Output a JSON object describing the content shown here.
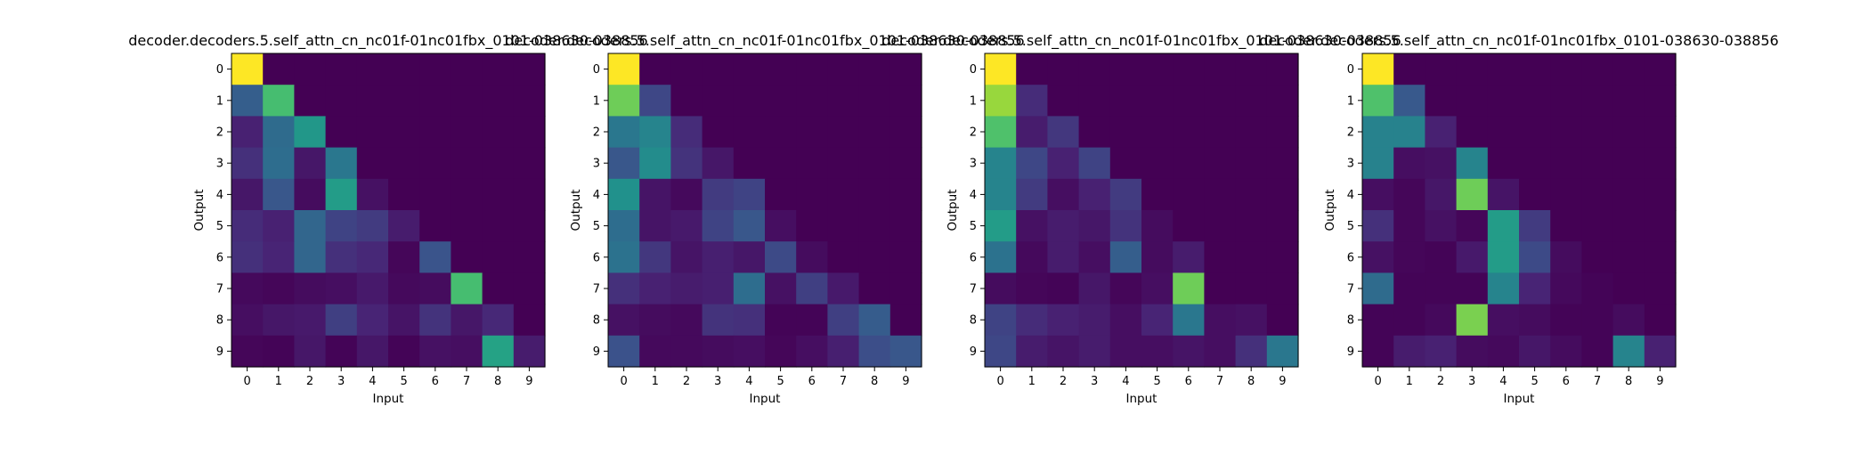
{
  "chart_data": [
    {
      "type": "heatmap",
      "title": "decoder.decoders.5.self_attn_cn_nc01f-01nc01fbx_0101-038630-038856",
      "xlabel": "Input",
      "ylabel": "Output",
      "x_ticks": [
        "0",
        "1",
        "2",
        "3",
        "4",
        "5",
        "6",
        "7",
        "8",
        "9"
      ],
      "y_ticks": [
        "0",
        "1",
        "2",
        "3",
        "4",
        "5",
        "6",
        "7",
        "8",
        "9"
      ],
      "colormap": "viridis",
      "vmin": 0,
      "vmax": 1,
      "values": [
        [
          1.0,
          0,
          0,
          0,
          0,
          0,
          0,
          0,
          0,
          0
        ],
        [
          0.3,
          0.7,
          0,
          0,
          0,
          0,
          0,
          0,
          0,
          0
        ],
        [
          0.12,
          0.35,
          0.53,
          0,
          0,
          0,
          0,
          0,
          0,
          0
        ],
        [
          0.16,
          0.36,
          0.08,
          0.4,
          0,
          0,
          0,
          0,
          0,
          0
        ],
        [
          0.08,
          0.27,
          0.04,
          0.55,
          0.06,
          0,
          0,
          0,
          0,
          0
        ],
        [
          0.15,
          0.12,
          0.33,
          0.21,
          0.19,
          0.1,
          0,
          0,
          0,
          0
        ],
        [
          0.16,
          0.13,
          0.33,
          0.16,
          0.14,
          0.02,
          0.26,
          0,
          0,
          0
        ],
        [
          0.03,
          0.02,
          0.04,
          0.05,
          0.09,
          0.03,
          0.04,
          0.7,
          0,
          0
        ],
        [
          0.05,
          0.08,
          0.09,
          0.2,
          0.13,
          0.07,
          0.17,
          0.08,
          0.14,
          0
        ],
        [
          0.02,
          0.01,
          0.08,
          0.01,
          0.08,
          0.01,
          0.06,
          0.05,
          0.58,
          0.1
        ]
      ]
    },
    {
      "type": "heatmap",
      "title": "decoder.decoders.5.self_attn_cn_nc01f-01nc01fbx_0101-038630-038856",
      "xlabel": "Input",
      "ylabel": "Output",
      "x_ticks": [
        "0",
        "1",
        "2",
        "3",
        "4",
        "5",
        "6",
        "7",
        "8",
        "9"
      ],
      "y_ticks": [
        "0",
        "1",
        "2",
        "3",
        "4",
        "5",
        "6",
        "7",
        "8",
        "9"
      ],
      "colormap": "viridis",
      "vmin": 0,
      "vmax": 1,
      "values": [
        [
          1.0,
          0,
          0,
          0,
          0,
          0,
          0,
          0,
          0,
          0
        ],
        [
          0.78,
          0.22,
          0,
          0,
          0,
          0,
          0,
          0,
          0,
          0
        ],
        [
          0.4,
          0.45,
          0.15,
          0,
          0,
          0,
          0,
          0,
          0,
          0
        ],
        [
          0.27,
          0.48,
          0.17,
          0.08,
          0,
          0,
          0,
          0,
          0,
          0
        ],
        [
          0.5,
          0.07,
          0.03,
          0.19,
          0.21,
          0,
          0,
          0,
          0,
          0
        ],
        [
          0.36,
          0.07,
          0.09,
          0.21,
          0.27,
          0.05,
          0,
          0,
          0,
          0
        ],
        [
          0.38,
          0.18,
          0.07,
          0.11,
          0.08,
          0.23,
          0.04,
          0,
          0,
          0
        ],
        [
          0.16,
          0.12,
          0.1,
          0.11,
          0.36,
          0.06,
          0.2,
          0.09,
          0,
          0
        ],
        [
          0.06,
          0.04,
          0.03,
          0.17,
          0.16,
          0.01,
          0.01,
          0.2,
          0.29,
          0
        ],
        [
          0.25,
          0.03,
          0.03,
          0.04,
          0.05,
          0.02,
          0.05,
          0.11,
          0.24,
          0.27
        ]
      ]
    },
    {
      "type": "heatmap",
      "title": "decoder.decoders.5.self_attn_cn_nc01f-01nc01fbx_0101-038630-038856",
      "xlabel": "Input",
      "ylabel": "Output",
      "x_ticks": [
        "0",
        "1",
        "2",
        "3",
        "4",
        "5",
        "6",
        "7",
        "8",
        "9"
      ],
      "y_ticks": [
        "0",
        "1",
        "2",
        "3",
        "4",
        "5",
        "6",
        "7",
        "8",
        "9"
      ],
      "colormap": "viridis",
      "vmin": 0,
      "vmax": 1,
      "values": [
        [
          1.0,
          0,
          0,
          0,
          0,
          0,
          0,
          0,
          0,
          0
        ],
        [
          0.85,
          0.15,
          0,
          0,
          0,
          0,
          0,
          0,
          0,
          0
        ],
        [
          0.72,
          0.1,
          0.18,
          0,
          0,
          0,
          0,
          0,
          0,
          0
        ],
        [
          0.45,
          0.22,
          0.12,
          0.21,
          0,
          0,
          0,
          0,
          0,
          0
        ],
        [
          0.45,
          0.19,
          0.05,
          0.12,
          0.19,
          0,
          0,
          0,
          0,
          0
        ],
        [
          0.55,
          0.06,
          0.1,
          0.08,
          0.17,
          0.04,
          0,
          0,
          0,
          0
        ],
        [
          0.38,
          0.03,
          0.1,
          0.05,
          0.3,
          0.04,
          0.1,
          0,
          0,
          0
        ],
        [
          0.04,
          0.02,
          0.01,
          0.08,
          0.02,
          0.05,
          0.78,
          0,
          0,
          0
        ],
        [
          0.21,
          0.15,
          0.12,
          0.1,
          0.05,
          0.13,
          0.4,
          0.05,
          0.06,
          0
        ],
        [
          0.22,
          0.1,
          0.07,
          0.1,
          0.05,
          0.05,
          0.07,
          0.05,
          0.16,
          0.4
        ]
      ]
    },
    {
      "type": "heatmap",
      "title": "decoder.decoders.5.self_attn_cn_nc01f-01nc01fbx_0101-038630-038856",
      "xlabel": "Input",
      "ylabel": "Output",
      "x_ticks": [
        "0",
        "1",
        "2",
        "3",
        "4",
        "5",
        "6",
        "7",
        "8",
        "9"
      ],
      "y_ticks": [
        "0",
        "1",
        "2",
        "3",
        "4",
        "5",
        "6",
        "7",
        "8",
        "9"
      ],
      "colormap": "viridis",
      "vmin": 0,
      "vmax": 1,
      "values": [
        [
          1.0,
          0,
          0,
          0,
          0,
          0,
          0,
          0,
          0,
          0
        ],
        [
          0.72,
          0.28,
          0,
          0,
          0,
          0,
          0,
          0,
          0,
          0
        ],
        [
          0.44,
          0.44,
          0.12,
          0,
          0,
          0,
          0,
          0,
          0,
          0
        ],
        [
          0.44,
          0.05,
          0.06,
          0.45,
          0,
          0,
          0,
          0,
          0,
          0
        ],
        [
          0.05,
          0.02,
          0.08,
          0.78,
          0.07,
          0,
          0,
          0,
          0,
          0
        ],
        [
          0.16,
          0.02,
          0.06,
          0.02,
          0.55,
          0.19,
          0,
          0,
          0,
          0
        ],
        [
          0.06,
          0.02,
          0.01,
          0.09,
          0.55,
          0.23,
          0.04,
          0,
          0,
          0
        ],
        [
          0.35,
          0.01,
          0.01,
          0.01,
          0.45,
          0.13,
          0.03,
          0.01,
          0,
          0
        ],
        [
          0.01,
          0.01,
          0.03,
          0.8,
          0.05,
          0.04,
          0.01,
          0.01,
          0.04,
          0
        ],
        [
          0.01,
          0.1,
          0.12,
          0.04,
          0.03,
          0.08,
          0.04,
          0.01,
          0.45,
          0.12
        ]
      ]
    }
  ]
}
